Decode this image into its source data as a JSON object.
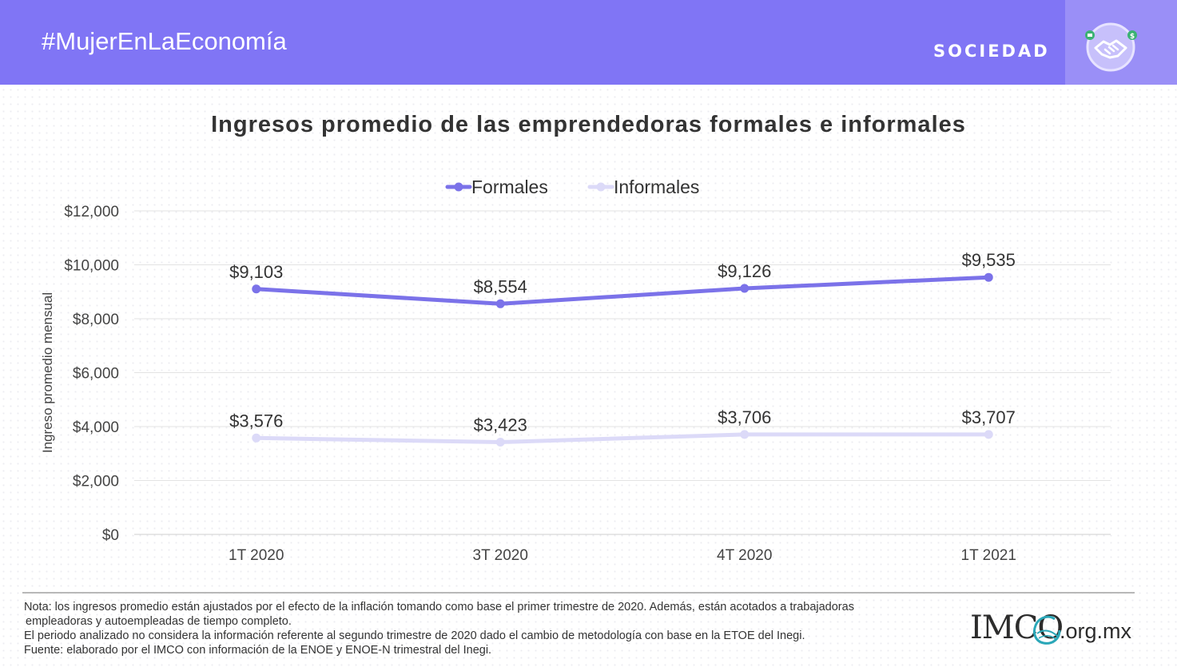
{
  "header": {
    "hashtag": "#MujerEnLaEconomía",
    "section": "SOCIEDAD",
    "icon": "handshake-money-icon",
    "colors": {
      "banner": "#8075f5",
      "icon_panel": "#9a8ff7"
    }
  },
  "chart_data": {
    "type": "line",
    "title": "Ingresos promedio de las emprendedoras formales e informales",
    "ylabel": "Ingreso promedio mensual",
    "xlabel": "",
    "categories": [
      "1T 2020",
      "3T 2020",
      "4T 2020",
      "1T 2021"
    ],
    "ylim": [
      0,
      12000
    ],
    "yticks": [
      "$0",
      "$2,000",
      "$4,000",
      "$6,000",
      "$8,000",
      "$10,000",
      "$12,000"
    ],
    "legend_position": "top-center",
    "grid": true,
    "series": [
      {
        "name": "Formales",
        "color": "#7b72e9",
        "values": [
          9103,
          8554,
          9126,
          9535
        ],
        "labels": [
          "$9,103",
          "$8,554",
          "$9,126",
          "$9,535"
        ]
      },
      {
        "name": "Informales",
        "color": "#dcdaf8",
        "values": [
          3576,
          3423,
          3706,
          3707
        ],
        "labels": [
          "$3,576",
          "$3,423",
          "$3,706",
          "$3,707"
        ]
      }
    ]
  },
  "notes": {
    "line1": "Nota: los ingresos promedio están ajustados por el efecto de la inflación tomando como base el primer trimestre de 2020. Además, están acotados a trabajadoras",
    "line2": "empleadoras y autoempleadas de tiempo completo.",
    "line3": "El periodo analizado no considera la información referente al segundo trimestre de 2020 dado el cambio de metodología con base en la ETOE del Inegi.",
    "line4": "Fuente: elaborado por el IMCO con información de la ENOE y ENOE-N trimestral del Inegi."
  },
  "logo": {
    "name": "IMCO",
    "domain": ".org.mx",
    "icon": "imco-swirl-logo-icon"
  }
}
